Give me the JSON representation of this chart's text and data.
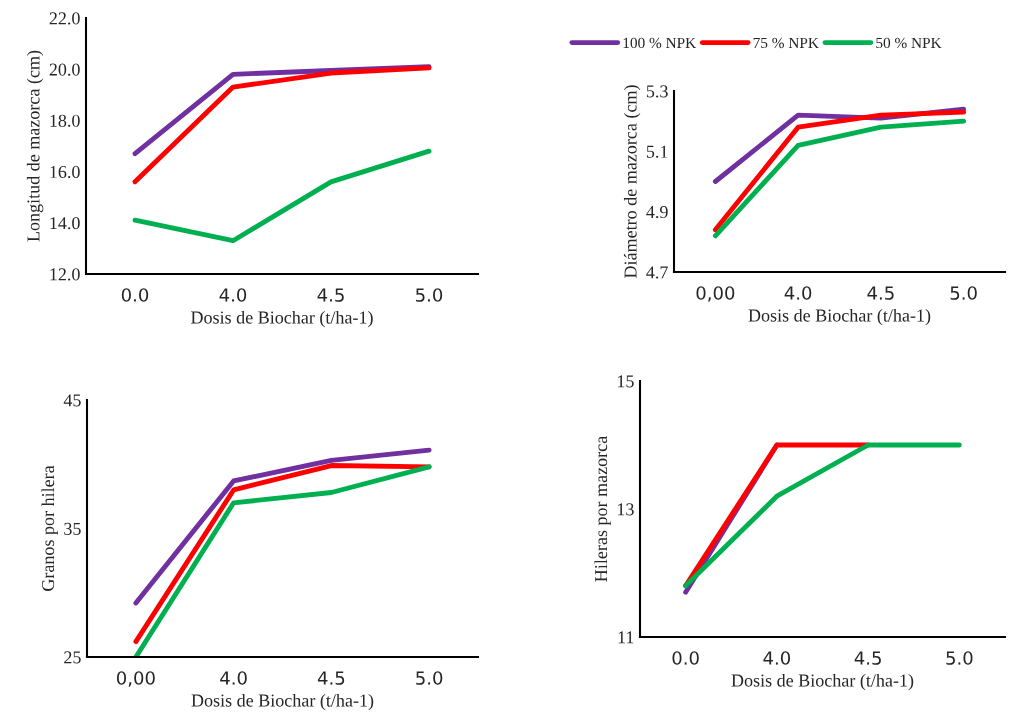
{
  "chart_data": [
    {
      "type": "line",
      "categories": [
        "0.0",
        "4.0",
        "4.5",
        "5.0"
      ],
      "xlabel": "Dosis de Biochar (t/ha-1)",
      "ylabel": "Longitud de mazorca (cm)",
      "ylim": [
        12,
        22
      ],
      "yticks": [
        {
          "value": 12,
          "label": "12.0"
        },
        {
          "value": 14,
          "label": "14.0"
        },
        {
          "value": 16,
          "label": "16.0"
        },
        {
          "value": 18,
          "label": "18.0"
        },
        {
          "value": 20,
          "label": "20.0"
        },
        {
          "value": 22,
          "label": "22.0"
        }
      ],
      "grid": false,
      "legend": false,
      "series": [
        {
          "color": "#7030a0",
          "values": [
            16.7,
            19.8,
            19.95,
            20.1
          ]
        },
        {
          "color": "#ff0000",
          "values": [
            15.6,
            19.3,
            19.85,
            20.05
          ]
        },
        {
          "color": "#00b050",
          "values": [
            14.1,
            13.3,
            15.6,
            16.8
          ]
        }
      ]
    },
    {
      "type": "line",
      "categories": [
        "0,00",
        "4.0",
        "4.5",
        "5.0"
      ],
      "xlabel": "Dosis de Biochar (t/ha-1)",
      "ylabel": "Diámetro de mazorca (cm)",
      "ylim": [
        4.7,
        5.3
      ],
      "yticks": [
        4.7,
        4.9,
        5.1,
        5.3
      ],
      "grid": false,
      "legend": "top",
      "series": [
        {
          "name": "100 % NPK",
          "color": "#7030a0",
          "values": [
            5.0,
            5.22,
            5.21,
            5.24
          ]
        },
        {
          "name": "75 % NPK",
          "color": "#ff0000",
          "values": [
            4.84,
            5.18,
            5.22,
            5.23
          ]
        },
        {
          "name": "50 % NPK",
          "color": "#00b050",
          "values": [
            4.82,
            5.12,
            5.18,
            5.2
          ]
        }
      ]
    },
    {
      "type": "line",
      "categories": [
        "0,00",
        "4.0",
        "4.5",
        "5.0"
      ],
      "xlabel": "Dosis de Biochar (t/ha-1)",
      "ylabel": "Granos por hilera",
      "ylim": [
        25,
        45
      ],
      "yticks": [
        25,
        35,
        45
      ],
      "grid": false,
      "legend": false,
      "series": [
        {
          "color": "#7030a0",
          "values": [
            29.2,
            38.7,
            40.3,
            41.1
          ]
        },
        {
          "color": "#ff0000",
          "values": [
            26.2,
            38.0,
            39.9,
            39.8
          ]
        },
        {
          "color": "#00b050",
          "values": [
            25,
            37.0,
            37.8,
            39.8
          ]
        }
      ]
    },
    {
      "type": "line",
      "categories": [
        "0.0",
        "4.0",
        "4.5",
        "5.0"
      ],
      "xlabel": "Dosis de Biochar (t/ha-1)",
      "ylabel": "Hileras por mazorca",
      "ylim": [
        11,
        15
      ],
      "yticks": [
        11,
        13,
        15
      ],
      "grid": false,
      "legend": false,
      "series": [
        {
          "color": "#7030a0",
          "values": [
            11.7,
            14.0,
            null,
            null
          ]
        },
        {
          "color": "#ff0000",
          "values": [
            11.8,
            14.0,
            14.0,
            null
          ]
        },
        {
          "color": "#00b050",
          "values": [
            11.8,
            13.2,
            14.0,
            14.0
          ]
        }
      ]
    }
  ]
}
